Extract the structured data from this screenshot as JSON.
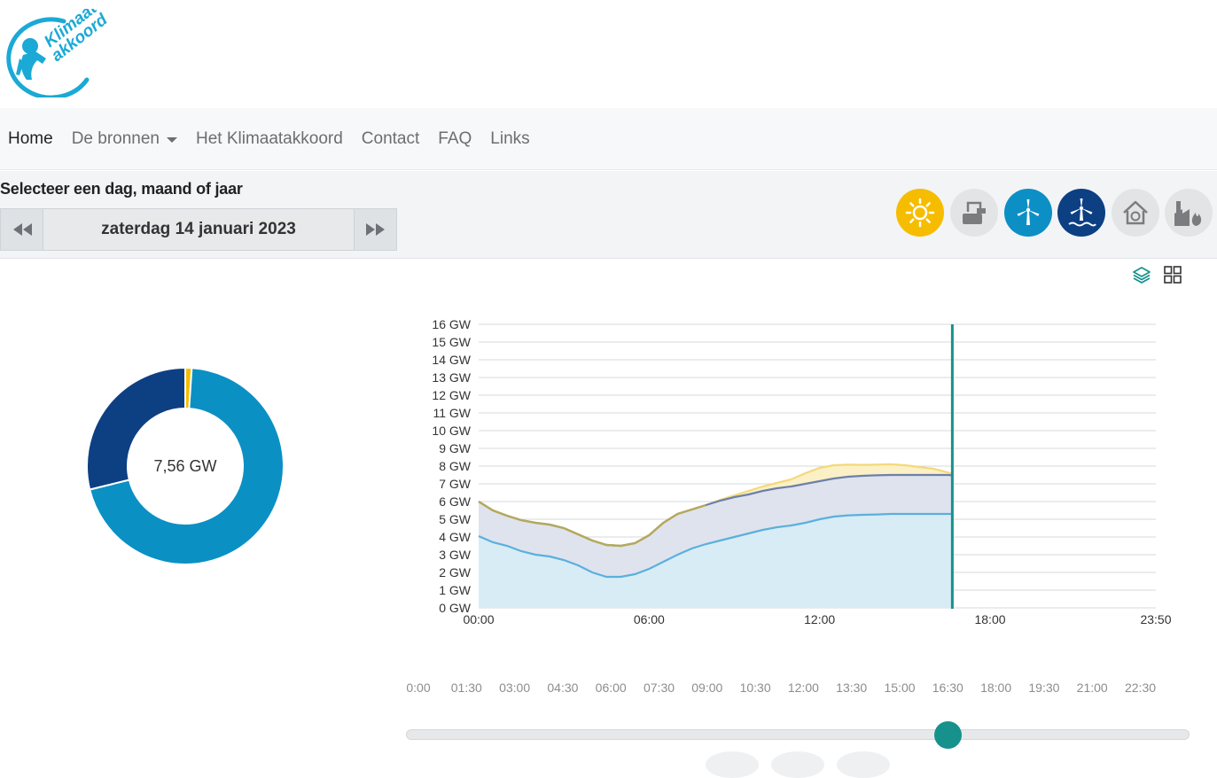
{
  "brand": {
    "logo_text_line1": "Klimaat-",
    "logo_text_line2": "akkoord",
    "color": "#1ba9d6"
  },
  "nav": {
    "items": [
      {
        "label": "Home",
        "active": true
      },
      {
        "label": "De bronnen",
        "dropdown": true
      },
      {
        "label": "Het Klimaatakkoord"
      },
      {
        "label": "Contact"
      },
      {
        "label": "FAQ"
      },
      {
        "label": "Links"
      }
    ]
  },
  "selector": {
    "title": "Selecteer een dag, maand of jaar",
    "date": "zaterdag 14 januari 2023",
    "prev_icon": "rewind-icon",
    "next_icon": "fast-forward-icon"
  },
  "sources": [
    {
      "name": "sun-icon",
      "color": "#f6bd00",
      "active": true
    },
    {
      "name": "factory-storage-icon",
      "color": "#e3e4e6",
      "active": false
    },
    {
      "name": "wind-turbine-land-icon",
      "color": "#0c8fc4",
      "active": true
    },
    {
      "name": "wind-turbine-sea-icon",
      "color": "#0d3f83",
      "active": true
    },
    {
      "name": "house-heat-icon",
      "color": "#e3e4e6",
      "active": false
    },
    {
      "name": "industry-fire-icon",
      "color": "#e3e4e6",
      "active": false
    }
  ],
  "view_icons": [
    "layers-icon",
    "grid-icon"
  ],
  "donut": {
    "center_label": "7,56 GW",
    "segments": [
      {
        "name": "zon",
        "value": 0.08,
        "color": "#f6bd00"
      },
      {
        "name": "wind op land",
        "value": 5.3,
        "color": "#0b90c4"
      },
      {
        "name": "wind op zee",
        "value": 2.18,
        "color": "#0d3f83"
      }
    ]
  },
  "chart_data": {
    "type": "area",
    "x_ticks": [
      "00:00",
      "06:00",
      "12:00",
      "18:00",
      "23:50"
    ],
    "y_ticks": [
      "0 GW",
      "1 GW",
      "2 GW",
      "3 GW",
      "4 GW",
      "5 GW",
      "6 GW",
      "7 GW",
      "8 GW",
      "9 GW",
      "10 GW",
      "11 GW",
      "12 GW",
      "13 GW",
      "14 GW",
      "15 GW",
      "16 GW"
    ],
    "ylim": [
      0,
      16
    ],
    "xlim_hours": [
      0,
      23.833
    ],
    "cursor_hour": 16.67,
    "x": [
      0,
      0.5,
      1,
      1.5,
      2,
      2.5,
      3,
      3.5,
      4,
      4.5,
      5,
      5.5,
      6,
      6.5,
      7,
      7.5,
      8,
      8.5,
      9,
      9.5,
      10,
      10.5,
      11,
      11.5,
      12,
      12.5,
      13,
      13.5,
      14,
      14.5,
      15,
      15.5,
      16,
      16.5,
      16.67
    ],
    "series": [
      {
        "name": "wind op land",
        "color": "#5ab0dc",
        "fill": "#d8ecf6",
        "values": [
          4.05,
          3.7,
          3.5,
          3.2,
          3.0,
          2.9,
          2.7,
          2.4,
          2.0,
          1.75,
          1.75,
          1.9,
          2.2,
          2.6,
          3.0,
          3.35,
          3.6,
          3.8,
          4.0,
          4.2,
          4.4,
          4.55,
          4.65,
          4.8,
          5.0,
          5.15,
          5.22,
          5.25,
          5.27,
          5.3,
          5.3,
          5.3,
          5.3,
          5.3,
          5.3
        ]
      },
      {
        "name": "wind op zee",
        "color": "#6c80a8",
        "fill": "#dfe3ee",
        "values": [
          6.0,
          5.5,
          5.2,
          4.95,
          4.8,
          4.7,
          4.5,
          4.15,
          3.8,
          3.55,
          3.5,
          3.65,
          4.1,
          4.8,
          5.3,
          5.55,
          5.8,
          6.05,
          6.25,
          6.4,
          6.6,
          6.75,
          6.85,
          7.0,
          7.15,
          7.3,
          7.4,
          7.45,
          7.48,
          7.5,
          7.5,
          7.5,
          7.5,
          7.5,
          7.48
        ]
      },
      {
        "name": "zon",
        "color": "#f3d97a",
        "fill": "#fbf0c6",
        "values": [
          6.0,
          5.5,
          5.2,
          4.95,
          4.8,
          4.7,
          4.5,
          4.15,
          3.8,
          3.55,
          3.5,
          3.65,
          4.1,
          4.8,
          5.3,
          5.55,
          5.8,
          6.1,
          6.35,
          6.6,
          6.85,
          7.05,
          7.25,
          7.6,
          7.9,
          8.05,
          8.08,
          8.07,
          8.08,
          8.1,
          8.05,
          7.95,
          7.85,
          7.65,
          7.56
        ]
      }
    ]
  },
  "timeline": {
    "labels": [
      "0:00",
      "01:30",
      "03:00",
      "04:30",
      "06:00",
      "07:30",
      "09:00",
      "10:30",
      "12:00",
      "13:30",
      "15:00",
      "16:30",
      "18:00",
      "19:30",
      "21:00",
      "22:30"
    ]
  },
  "slider": {
    "value_hour": 16.67,
    "max_hour": 23.833
  }
}
